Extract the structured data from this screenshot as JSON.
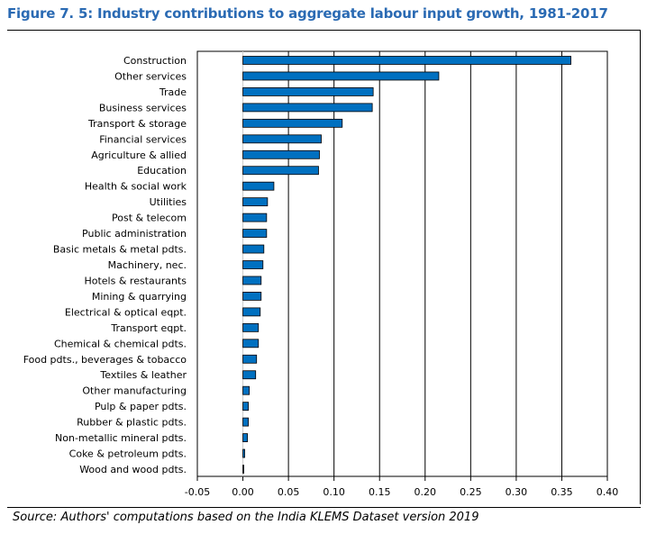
{
  "chart_data": {
    "type": "bar",
    "orientation": "horizontal",
    "title": "Figure 7. 5: Industry contributions to aggregate labour input growth, 1981-2017",
    "source": "Source: Authors' computations based on the India KLEMS Dataset version 2019",
    "categories": [
      "Construction",
      "Other services",
      "Trade",
      "Business services",
      "Transport & storage",
      "Financial services",
      "Agriculture & allied",
      "Education",
      "Health & social work",
      "Utilities",
      "Post & telecom",
      "Public administration",
      "Basic metals & metal pdts.",
      "Machinery, nec.",
      "Hotels & restaurants",
      "Mining & quarrying",
      "Electrical & optical eqpt.",
      "Transport eqpt.",
      "Chemical & chemical pdts.",
      "Food pdts., beverages & tobacco",
      "Textiles & leather",
      "Other manufacturing",
      "Pulp & paper pdts.",
      "Rubber & plastic pdts.",
      "Non-metallic mineral pdts.",
      "Coke & petroleum pdts.",
      "Wood and wood pdts."
    ],
    "values": [
      0.36,
      0.215,
      0.143,
      0.142,
      0.109,
      0.086,
      0.084,
      0.083,
      0.034,
      0.027,
      0.026,
      0.026,
      0.023,
      0.022,
      0.02,
      0.02,
      0.019,
      0.017,
      0.017,
      0.015,
      0.014,
      0.007,
      0.006,
      0.006,
      0.005,
      0.002,
      0.001
    ],
    "xlim": [
      -0.05,
      0.4
    ],
    "xticks": [
      "-0.05",
      "0.00",
      "0.05",
      "0.10",
      "0.15",
      "0.20",
      "0.25",
      "0.30",
      "0.35",
      "0.40"
    ],
    "grid": "vertical",
    "bar_color": "#0070c0",
    "title_color": "#2a6ab3",
    "xlabel": "",
    "ylabel": ""
  }
}
